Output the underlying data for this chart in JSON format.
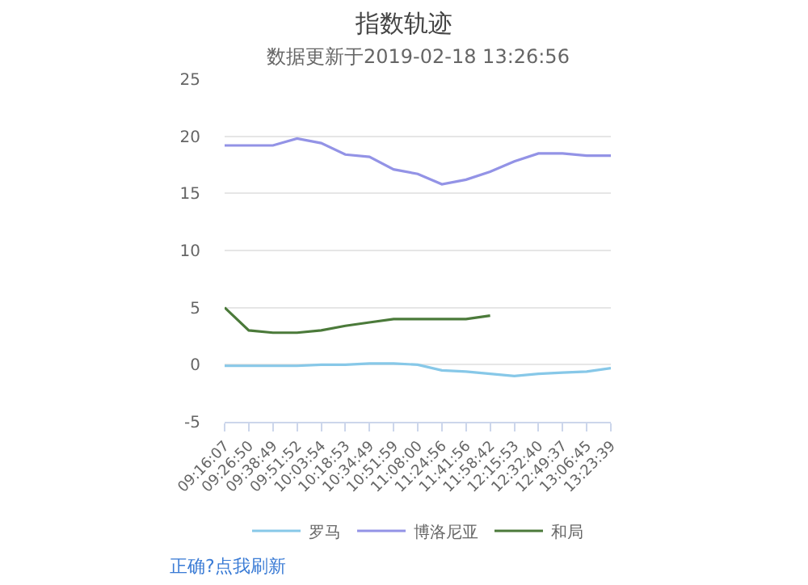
{
  "chart_data": {
    "type": "line",
    "title": "指数轨迹",
    "subtitle": "数据更新于2019-02-18 13:26:56",
    "categories": [
      "09:16:07",
      "09:26:50",
      "09:38:49",
      "09:51:52",
      "10:03:54",
      "10:18:53",
      "10:34:49",
      "10:51:59",
      "11:08:00",
      "11:24:56",
      "11:41:56",
      "11:58:42",
      "12:15:53",
      "12:32:40",
      "12:49:37",
      "13:06:45",
      "13:23:39"
    ],
    "series": [
      {
        "name": "罗马",
        "color": "#87c8e8",
        "values": [
          -0.1,
          -0.1,
          -0.1,
          -0.1,
          0,
          0,
          0.1,
          0.1,
          0,
          -0.5,
          -0.6,
          -0.8,
          -1.0,
          -0.8,
          -0.7,
          -0.6,
          -0.3
        ]
      },
      {
        "name": "博洛尼亚",
        "color": "#9393e6",
        "values": [
          19.2,
          19.2,
          19.2,
          19.8,
          19.4,
          18.4,
          18.2,
          17.1,
          16.7,
          15.8,
          16.2,
          16.9,
          17.8,
          18.5,
          18.5,
          18.3,
          18.3
        ]
      },
      {
        "name": "和局",
        "color": "#4b7a3a",
        "values": [
          5.0,
          3.0,
          2.8,
          2.8,
          3.0,
          3.4,
          3.7,
          4.0,
          4.0,
          4.0,
          4.0,
          4.3,
          null,
          null,
          null,
          null,
          null
        ]
      }
    ],
    "ylim": [
      -5,
      25
    ],
    "yticks": [
      -5,
      0,
      5,
      10,
      15,
      20,
      25
    ],
    "grid": "y",
    "legend": "bottom",
    "marker": "none",
    "line_style": "solid",
    "annotations": [
      "正确?点我刷新"
    ]
  }
}
